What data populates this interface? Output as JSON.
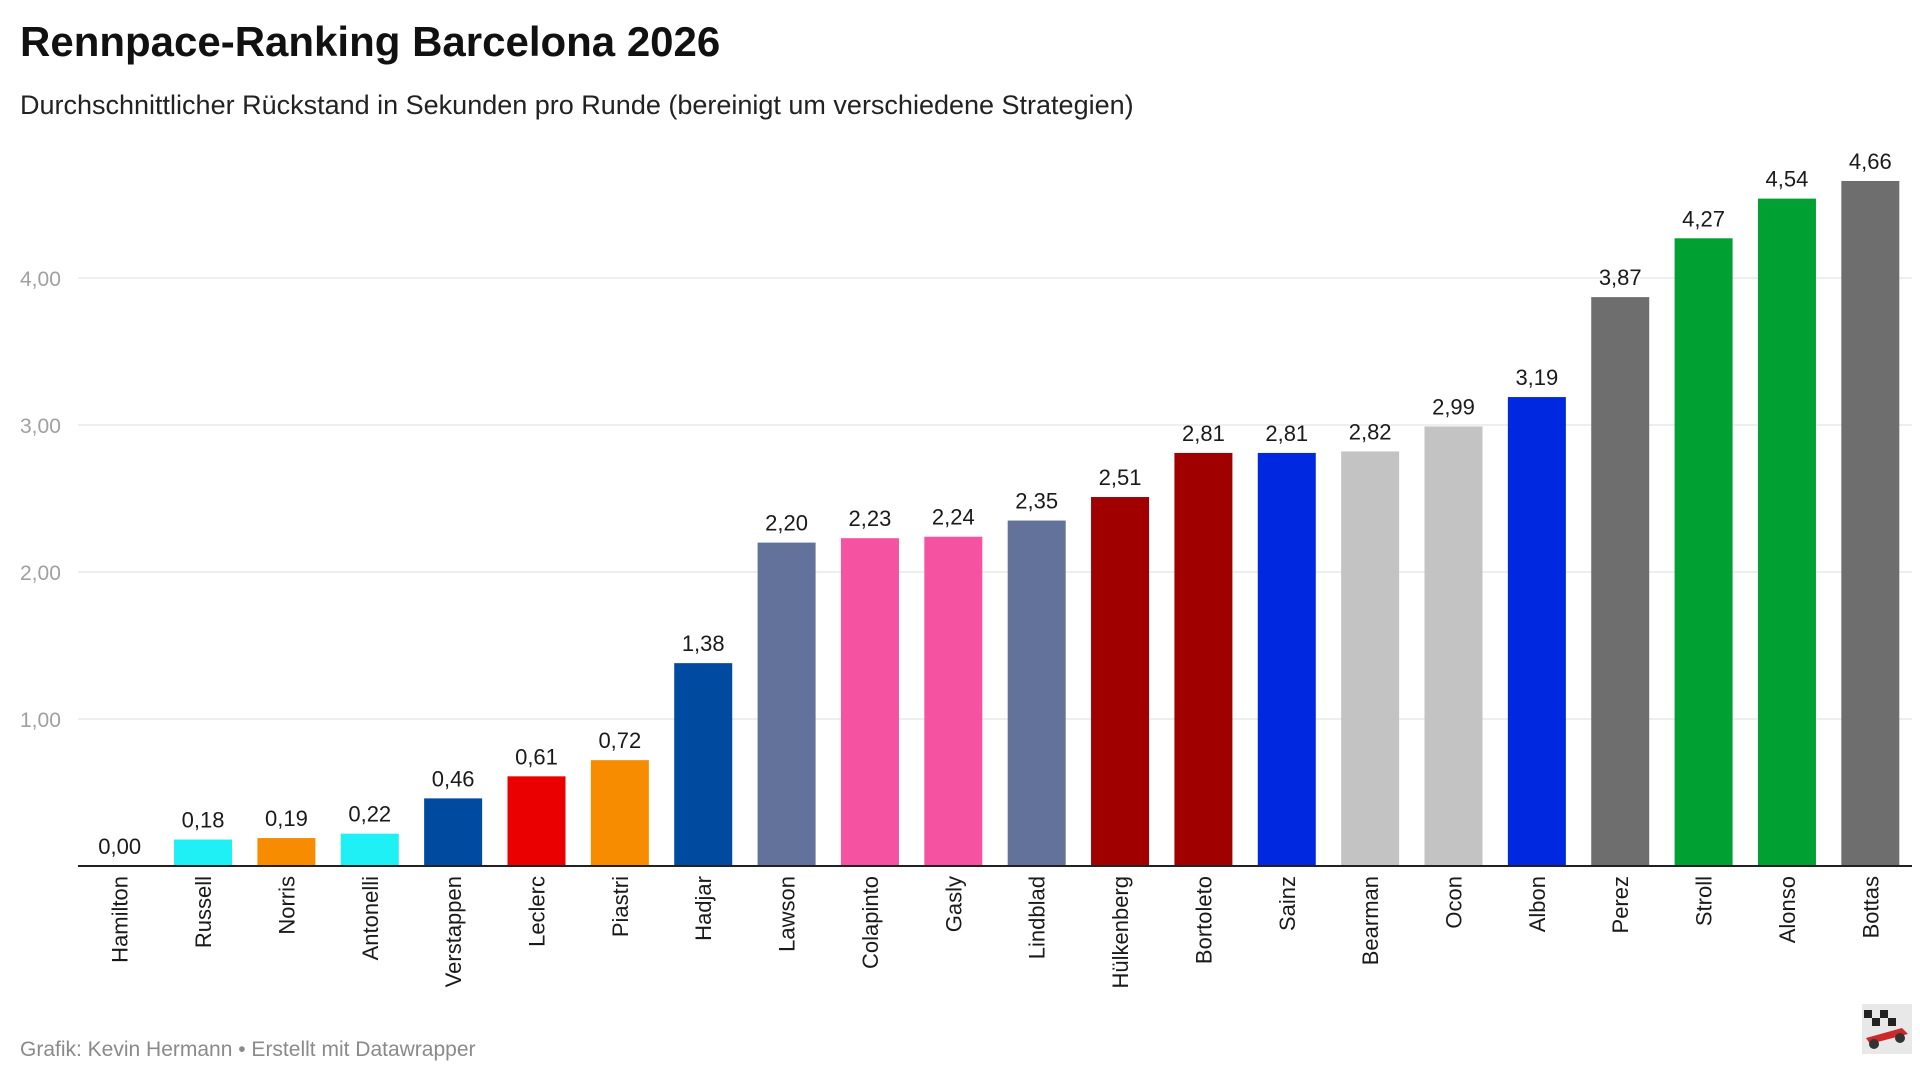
{
  "header": {
    "title": "Rennpace-Ranking Barcelona 2026",
    "subtitle": "Durchschnittlicher Rückstand in Sekunden pro Runde (bereinigt um verschiedene Strategien)"
  },
  "footer": {
    "credit": "Grafik: Kevin Hermann • Erstellt mit Datawrapper"
  },
  "chart_data": {
    "type": "bar",
    "title": "Rennpace-Ranking Barcelona 2026",
    "subtitle": "Durchschnittlicher Rückstand in Sekunden pro Runde (bereinigt um verschiedene Strategien)",
    "categories": [
      "Hamilton",
      "Russell",
      "Norris",
      "Antonelli",
      "Verstappen",
      "Leclerc",
      "Piastri",
      "Hadjar",
      "Lawson",
      "Colapinto",
      "Gasly",
      "Lindblad",
      "Hülkenberg",
      "Bortoleto",
      "Sainz",
      "Bearman",
      "Ocon",
      "Albon",
      "Perez",
      "Stroll",
      "Alonso",
      "Bottas"
    ],
    "values": [
      0.0,
      0.18,
      0.19,
      0.22,
      0.46,
      0.61,
      0.72,
      1.38,
      2.2,
      2.23,
      2.24,
      2.35,
      2.51,
      2.81,
      2.81,
      2.82,
      2.99,
      3.19,
      3.87,
      4.27,
      4.54,
      4.66
    ],
    "value_labels": [
      "0,00",
      "0,18",
      "0,19",
      "0,22",
      "0,46",
      "0,61",
      "0,72",
      "1,38",
      "2,20",
      "2,23",
      "2,24",
      "2,35",
      "2,51",
      "2,81",
      "2,81",
      "2,82",
      "2,99",
      "3,19",
      "3,87",
      "4,27",
      "4,54",
      "4,66"
    ],
    "colors": [
      "#00d2be",
      "#1ef0f5",
      "#f88c00",
      "#1ef0f5",
      "#004aa0",
      "#eb0000",
      "#f88c00",
      "#004aa0",
      "#63729b",
      "#f652a2",
      "#f652a2",
      "#63729b",
      "#a00000",
      "#a00000",
      "#0028e1",
      "#c3c3c3",
      "#c3c3c3",
      "#0028e1",
      "#6e6e6e",
      "#00a032",
      "#00a032",
      "#6e6e6e"
    ],
    "yticks": [
      1,
      2,
      3,
      4
    ],
    "ytick_labels": [
      "1,00",
      "2,00",
      "3,00",
      "4,00"
    ],
    "ylim": [
      0,
      4.66
    ],
    "xlabel": "",
    "ylabel": "",
    "grid": true,
    "legend": "none"
  }
}
